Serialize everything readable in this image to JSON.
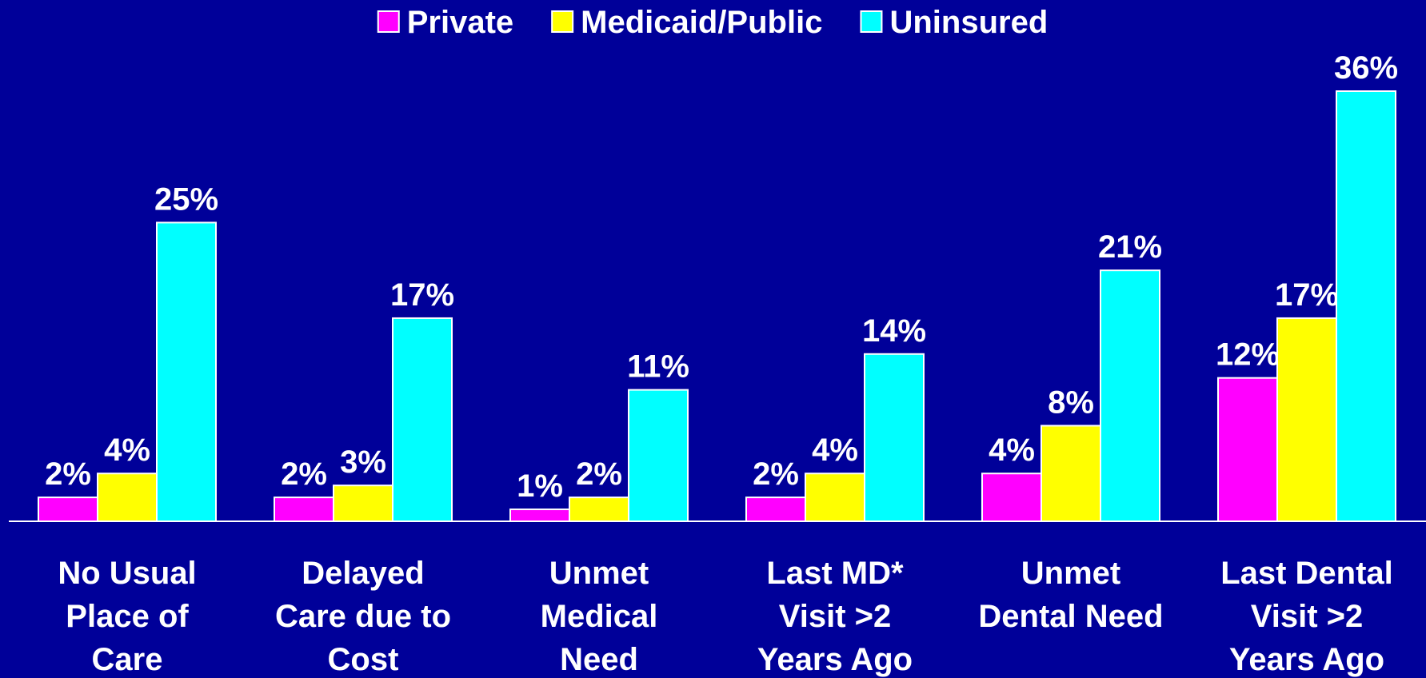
{
  "chart_data": {
    "type": "bar",
    "categories": [
      "No Usual\nPlace of\nCare",
      "Delayed\nCare due to\nCost",
      "Unmet\nMedical\nNeed",
      "Last MD*\nVisit >2\nYears Ago",
      "Unmet\nDental Need",
      "Last Dental\nVisit >2\nYears Ago"
    ],
    "series": [
      {
        "name": "Private",
        "color": "#ff00ff",
        "values": [
          2,
          2,
          1,
          2,
          4,
          12
        ],
        "value_labels": [
          "2%",
          "2%",
          "1%",
          "2%",
          "4%",
          "12%"
        ]
      },
      {
        "name": "Medicaid/Public",
        "color": "#ffff00",
        "values": [
          4,
          3,
          2,
          4,
          8,
          17
        ],
        "value_labels": [
          "4%",
          "3%",
          "2%",
          "4%",
          "8%",
          "17%"
        ]
      },
      {
        "name": "Uninsured",
        "color": "#00ffff",
        "values": [
          25,
          17,
          11,
          14,
          21,
          36
        ],
        "value_labels": [
          "25%",
          "17%",
          "11%",
          "14%",
          "21%",
          "36%"
        ]
      }
    ],
    "legend": "top"
  }
}
